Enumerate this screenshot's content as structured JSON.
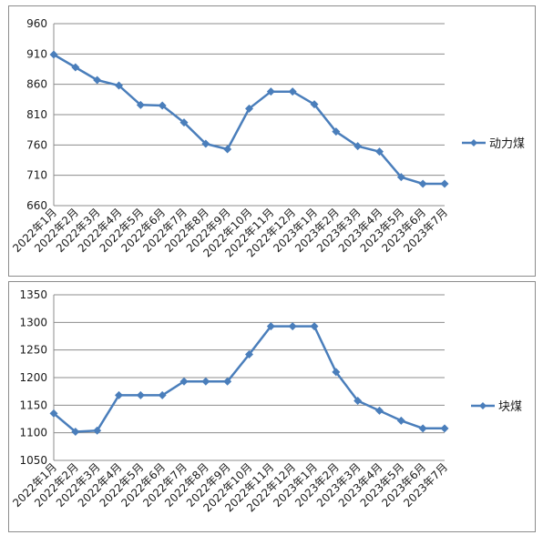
{
  "chart_data": [
    {
      "type": "line",
      "categories": [
        "2022年1月",
        "2022年2月",
        "2022年3月",
        "2022年4月",
        "2022年5月",
        "2022年6月",
        "2022年7月",
        "2022年8月",
        "2022年9月",
        "2022年10月",
        "2022年11月",
        "2022年12月",
        "2023年1月",
        "2023年2月",
        "2023年3月",
        "2023年4月",
        "2023年5月",
        "2023年6月",
        "2023年7月"
      ],
      "series": [
        {
          "name": "动力煤",
          "values": [
            909,
            888,
            867,
            858,
            826,
            825,
            797,
            762,
            753,
            820,
            848,
            848,
            827,
            782,
            758,
            749,
            707,
            696,
            696
          ]
        }
      ],
      "ylim": [
        660,
        960
      ],
      "yticks": [
        660,
        710,
        760,
        810,
        860,
        910,
        960
      ],
      "grid": true,
      "legend_position": "right",
      "color": "#4a7ebb"
    },
    {
      "type": "line",
      "categories": [
        "2022年1月",
        "2022年2月",
        "2022年3月",
        "2022年4月",
        "2022年5月",
        "2022年6月",
        "2022年7月",
        "2022年8月",
        "2022年9月",
        "2022年10月",
        "2022年11月",
        "2022年12月",
        "2023年1月",
        "2023年2月",
        "2023年3月",
        "2023年4月",
        "2023年5月",
        "2023年6月",
        "2023年7月"
      ],
      "series": [
        {
          "name": "块煤",
          "values": [
            1135,
            1102,
            1104,
            1168,
            1168,
            1168,
            1193,
            1193,
            1193,
            1242,
            1293,
            1293,
            1293,
            1210,
            1158,
            1140,
            1122,
            1108,
            1108
          ]
        }
      ],
      "ylim": [
        1050,
        1350
      ],
      "yticks": [
        1050,
        1100,
        1150,
        1200,
        1250,
        1300,
        1350
      ],
      "grid": true,
      "legend_position": "right",
      "color": "#4a7ebb"
    }
  ]
}
